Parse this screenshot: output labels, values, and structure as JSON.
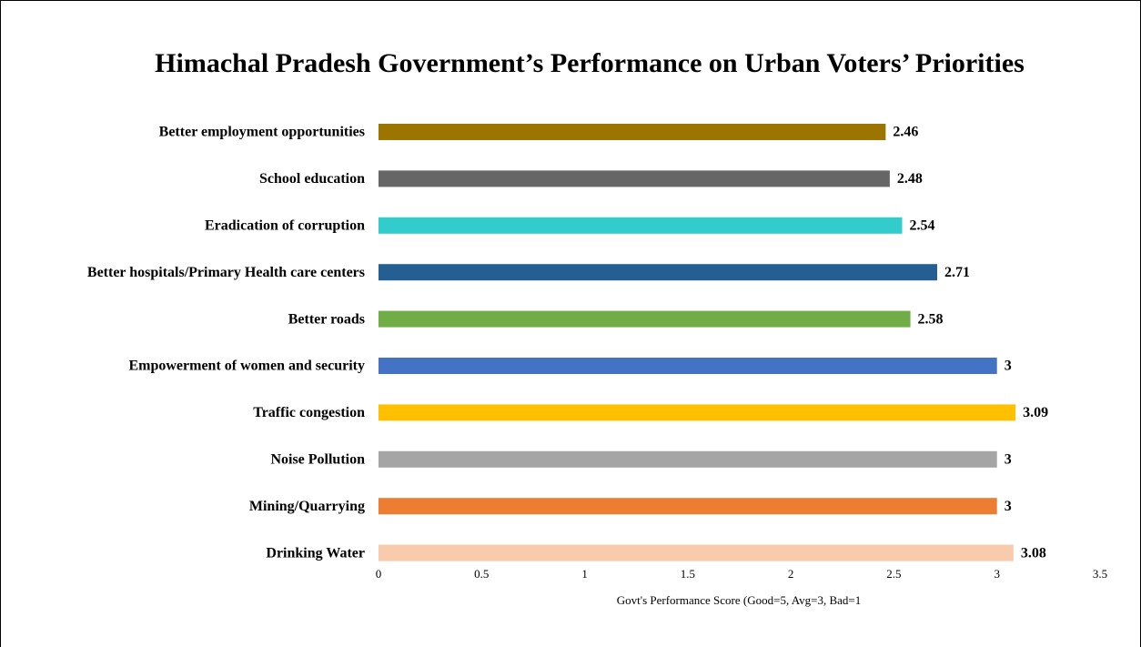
{
  "chart_data": {
    "type": "barh",
    "title": "Himachal Pradesh Government’s Performance on Urban Voters’ Priorities",
    "xlabel": "Govt's Performance Score (Good=5, Avg=3, Bad=1",
    "categories": [
      "Better employment opportunities",
      "School education",
      "Eradication of corruption",
      "Better hospitals/Primary Health care centers",
      "Better roads",
      "Empowerment of women and security",
      "Traffic congestion",
      "Noise Pollution",
      "Mining/Quarrying",
      "Drinking Water"
    ],
    "values": [
      2.46,
      2.48,
      2.54,
      2.71,
      2.58,
      3,
      3.09,
      3,
      3,
      3.08
    ],
    "colors": [
      "#9c7500",
      "#666666",
      "#33cccc",
      "#255e91",
      "#70ad47",
      "#4472c4",
      "#ffc000",
      "#a5a5a5",
      "#ed7d31",
      "#f8cbad"
    ],
    "xlim": [
      0,
      3.5
    ],
    "xticks": [
      0,
      0.5,
      1,
      1.5,
      2,
      2.5,
      3,
      3.5
    ],
    "grid": false
  }
}
